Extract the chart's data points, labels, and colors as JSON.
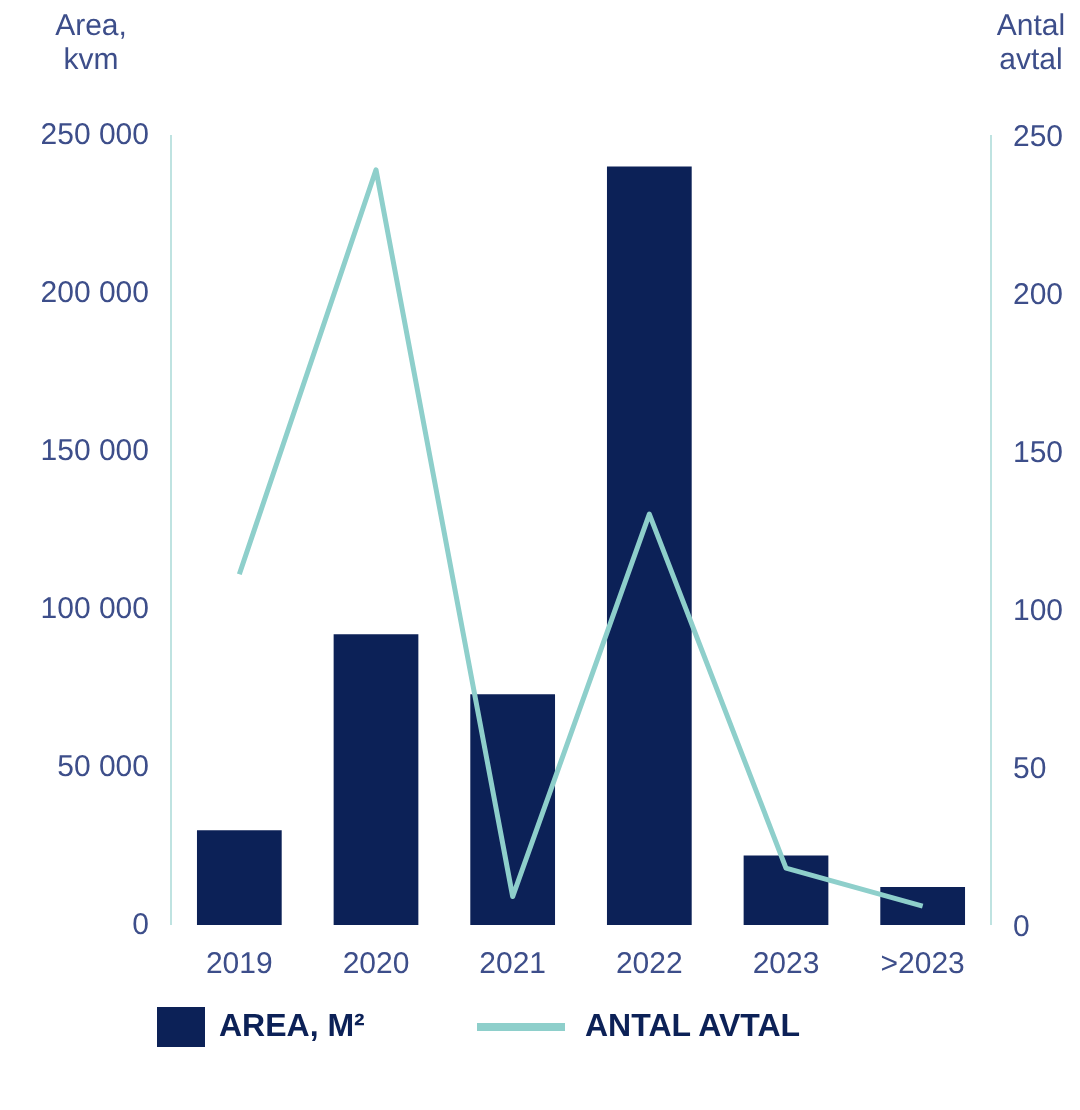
{
  "chart_data": {
    "type": "bar",
    "ylabel": "Area,\nkvm",
    "y2label": "Antal\navtal",
    "categories": [
      "2019",
      "2020",
      "2021",
      "2022",
      "2023",
      ">2023"
    ],
    "series": [
      {
        "name": "AREA, M²",
        "color": "#0c2157",
        "values": [
          30000,
          92000,
          73000,
          240000,
          22000,
          12000
        ]
      },
      {
        "name": "ANTAL AVTAL",
        "type": "line",
        "axis": "y2",
        "color": "#8ecfcb",
        "values": [
          111,
          239,
          9,
          130,
          18,
          6
        ]
      }
    ],
    "ylim": [
      0,
      250000
    ],
    "yticks": [
      {
        "value": 0,
        "label": "0"
      },
      {
        "value": 50000,
        "label": "50 000"
      },
      {
        "value": 100000,
        "label": "100 000"
      },
      {
        "value": 150000,
        "label": "150 000"
      },
      {
        "value": 200000,
        "label": "200 000"
      },
      {
        "value": 250000,
        "label": "250 000"
      }
    ],
    "y2lim": [
      0,
      250
    ],
    "y2ticks": [
      0,
      50,
      100,
      150,
      200,
      250
    ],
    "grid": false,
    "legend": "bottom"
  }
}
